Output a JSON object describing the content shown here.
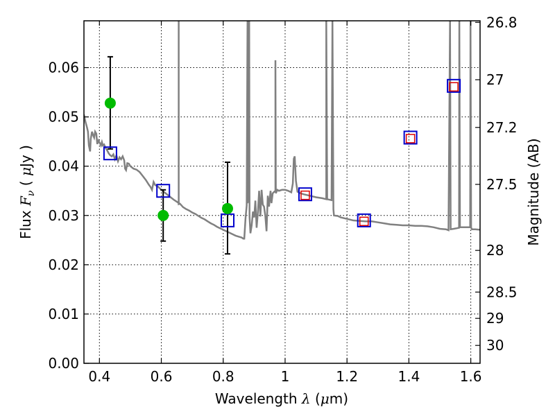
{
  "chart_data": {
    "type": "scatter",
    "xlabel": "Wavelength  λ (μm)",
    "ylabel": "Flux  Fν  ( μJy )",
    "y2label": "Magnitude (AB)",
    "xlim": [
      0.35,
      1.63
    ],
    "ylim": [
      0.0,
      0.0695
    ],
    "grid": true,
    "x_ticks": [
      0.4,
      0.6,
      0.8,
      1.0,
      1.2,
      1.4,
      1.6
    ],
    "x_tick_labels": [
      "0.4",
      "0.6",
      "0.8",
      "1",
      "1.2",
      "1.4",
      "1.6"
    ],
    "y_ticks": [
      0.0,
      0.01,
      0.02,
      0.03,
      0.04,
      0.05,
      0.06
    ],
    "y_tick_labels": [
      "0.00",
      "0.01",
      "0.02",
      "0.03",
      "0.04",
      "0.05",
      "0.06"
    ],
    "y2_ticks": [
      26.8,
      27.0,
      27.2,
      27.5,
      28.0,
      28.5,
      29.0,
      30.0
    ],
    "y2_tick_labels": [
      "26.8",
      "27",
      "27.2",
      "27.5",
      "28",
      "28.5",
      "29",
      "30"
    ],
    "series": [
      {
        "kind": "observed",
        "color": "#00bb00",
        "points": [
          {
            "x": 0.435,
            "y": 0.0528,
            "err_low": 0.0435,
            "err_high": 0.0622
          },
          {
            "x": 0.606,
            "y": 0.03,
            "err_low": 0.0248,
            "err_high": 0.0352
          },
          {
            "x": 0.814,
            "y": 0.0314,
            "err_low": 0.0222,
            "err_high": 0.0408
          }
        ]
      },
      {
        "kind": "model-broadband-blue",
        "color": "#0000cc",
        "points": [
          {
            "x": 0.435,
            "y": 0.0426
          },
          {
            "x": 0.606,
            "y": 0.035
          },
          {
            "x": 0.814,
            "y": 0.029
          },
          {
            "x": 1.065,
            "y": 0.0343
          },
          {
            "x": 1.255,
            "y": 0.029
          },
          {
            "x": 1.405,
            "y": 0.0458
          },
          {
            "x": 1.545,
            "y": 0.0563
          }
        ]
      },
      {
        "kind": "model-broadband-red",
        "color": "#dd0000",
        "points": [
          {
            "x": 1.065,
            "y": 0.0341
          },
          {
            "x": 1.255,
            "y": 0.0288
          },
          {
            "x": 1.405,
            "y": 0.0456
          },
          {
            "x": 1.545,
            "y": 0.0561
          }
        ]
      },
      {
        "kind": "model-spectrum",
        "color": "#808080",
        "points": [
          [
            0.35,
            0.0505
          ],
          [
            0.355,
            0.049
          ],
          [
            0.36,
            0.0478
          ],
          [
            0.363,
            0.047
          ],
          [
            0.366,
            0.0442
          ],
          [
            0.37,
            0.043
          ],
          [
            0.372,
            0.0455
          ],
          [
            0.376,
            0.047
          ],
          [
            0.38,
            0.0462
          ],
          [
            0.383,
            0.0458
          ],
          [
            0.386,
            0.047
          ],
          [
            0.39,
            0.0466
          ],
          [
            0.393,
            0.0445
          ],
          [
            0.397,
            0.0452
          ],
          [
            0.401,
            0.0447
          ],
          [
            0.405,
            0.0442
          ],
          [
            0.408,
            0.0449
          ],
          [
            0.411,
            0.0442
          ],
          [
            0.415,
            0.0444
          ],
          [
            0.42,
            0.0437
          ],
          [
            0.425,
            0.0432
          ],
          [
            0.43,
            0.0426
          ],
          [
            0.435,
            0.0422
          ],
          [
            0.44,
            0.042
          ],
          [
            0.445,
            0.0424
          ],
          [
            0.45,
            0.0414
          ],
          [
            0.455,
            0.0422
          ],
          [
            0.46,
            0.041
          ],
          [
            0.465,
            0.0418
          ],
          [
            0.47,
            0.0414
          ],
          [
            0.475,
            0.042
          ],
          [
            0.48,
            0.0412
          ],
          [
            0.483,
            0.0395
          ],
          [
            0.486,
            0.0392
          ],
          [
            0.49,
            0.0406
          ],
          [
            0.495,
            0.0405
          ],
          [
            0.5,
            0.04
          ],
          [
            0.51,
            0.0395
          ],
          [
            0.52,
            0.0393
          ],
          [
            0.53,
            0.0388
          ],
          [
            0.54,
            0.038
          ],
          [
            0.55,
            0.0372
          ],
          [
            0.56,
            0.0362
          ],
          [
            0.565,
            0.0358
          ],
          [
            0.57,
            0.0352
          ],
          [
            0.575,
            0.0368
          ],
          [
            0.58,
            0.0362
          ],
          [
            0.59,
            0.0358
          ],
          [
            0.6,
            0.0352
          ],
          [
            0.61,
            0.0347
          ],
          [
            0.62,
            0.0342
          ],
          [
            0.63,
            0.0337
          ],
          [
            0.64,
            0.0332
          ],
          [
            0.65,
            0.0328
          ],
          [
            0.6563,
            0.0325
          ],
          [
            0.6563,
            0.0697
          ],
          [
            0.6563,
            0.0323
          ],
          [
            0.66,
            0.0324
          ],
          [
            0.67,
            0.0317
          ],
          [
            0.68,
            0.0313
          ],
          [
            0.69,
            0.031
          ],
          [
            0.7,
            0.0306
          ],
          [
            0.71,
            0.0303
          ],
          [
            0.72,
            0.0299
          ],
          [
            0.73,
            0.0295
          ],
          [
            0.74,
            0.0292
          ],
          [
            0.75,
            0.0288
          ],
          [
            0.76,
            0.0284
          ],
          [
            0.77,
            0.0281
          ],
          [
            0.78,
            0.0277
          ],
          [
            0.79,
            0.0274
          ],
          [
            0.8,
            0.0271
          ],
          [
            0.81,
            0.0268
          ],
          [
            0.82,
            0.0265
          ],
          [
            0.83,
            0.0262
          ],
          [
            0.84,
            0.0259
          ],
          [
            0.85,
            0.0257
          ],
          [
            0.86,
            0.0255
          ],
          [
            0.865,
            0.0253
          ],
          [
            0.868,
            0.0253
          ],
          [
            0.872,
            0.0294
          ],
          [
            0.876,
            0.032
          ],
          [
            0.8786,
            0.0697
          ],
          [
            0.8786,
            0.0325
          ],
          [
            0.882,
            0.0335
          ],
          [
            0.884,
            0.0697
          ],
          [
            0.885,
            0.0298
          ],
          [
            0.888,
            0.0264
          ],
          [
            0.892,
            0.028
          ],
          [
            0.896,
            0.0308
          ],
          [
            0.9,
            0.0296
          ],
          [
            0.904,
            0.033
          ],
          [
            0.908,
            0.0275
          ],
          [
            0.912,
            0.0305
          ],
          [
            0.916,
            0.035
          ],
          [
            0.92,
            0.0298
          ],
          [
            0.924,
            0.0352
          ],
          [
            0.928,
            0.0322
          ],
          [
            0.932,
            0.0318
          ],
          [
            0.936,
            0.03
          ],
          [
            0.94,
            0.0268
          ],
          [
            0.944,
            0.034
          ],
          [
            0.948,
            0.0318
          ],
          [
            0.953,
            0.035
          ],
          [
            0.956,
            0.0325
          ],
          [
            0.96,
            0.0345
          ],
          [
            0.965,
            0.0348
          ],
          [
            0.9688,
            0.035
          ],
          [
            0.9688,
            0.0615
          ],
          [
            0.97,
            0.0345
          ],
          [
            0.975,
            0.0352
          ],
          [
            0.98,
            0.035
          ],
          [
            0.99,
            0.0352
          ],
          [
            1.0,
            0.0352
          ],
          [
            1.01,
            0.035
          ],
          [
            1.02,
            0.0347
          ],
          [
            1.025,
            0.0365
          ],
          [
            1.028,
            0.0415
          ],
          [
            1.031,
            0.042
          ],
          [
            1.035,
            0.037
          ],
          [
            1.04,
            0.0348
          ],
          [
            1.05,
            0.0345
          ],
          [
            1.06,
            0.0343
          ],
          [
            1.08,
            0.034
          ],
          [
            1.1,
            0.0337
          ],
          [
            1.12,
            0.0335
          ],
          [
            1.133,
            0.0333
          ],
          [
            1.133,
            0.0697
          ],
          [
            1.136,
            0.0333
          ],
          [
            1.15,
            0.0331
          ],
          [
            1.153,
            0.0697
          ],
          [
            1.156,
            0.0312
          ],
          [
            1.158,
            0.03
          ],
          [
            1.17,
            0.0299
          ],
          [
            1.18,
            0.0296
          ],
          [
            1.2,
            0.0293
          ],
          [
            1.22,
            0.029
          ],
          [
            1.24,
            0.0289
          ],
          [
            1.26,
            0.0288
          ],
          [
            1.28,
            0.0288
          ],
          [
            1.3,
            0.0286
          ],
          [
            1.32,
            0.0284
          ],
          [
            1.34,
            0.0282
          ],
          [
            1.36,
            0.0281
          ],
          [
            1.38,
            0.028
          ],
          [
            1.4,
            0.028
          ],
          [
            1.42,
            0.0279
          ],
          [
            1.44,
            0.0279
          ],
          [
            1.46,
            0.0278
          ],
          [
            1.48,
            0.0276
          ],
          [
            1.5,
            0.0273
          ],
          [
            1.52,
            0.0272
          ],
          [
            1.528,
            0.027
          ],
          [
            1.533,
            0.0697
          ],
          [
            1.535,
            0.0272
          ],
          [
            1.545,
            0.0273
          ],
          [
            1.555,
            0.0274
          ],
          [
            1.562,
            0.0275
          ],
          [
            1.563,
            0.0697
          ],
          [
            1.565,
            0.0276
          ],
          [
            1.58,
            0.0276
          ],
          [
            1.59,
            0.0276
          ],
          [
            1.598,
            0.0276
          ],
          [
            1.599,
            0.0697
          ],
          [
            1.601,
            0.0275
          ],
          [
            1.604,
            0.0272
          ],
          [
            1.615,
            0.0272
          ],
          [
            1.63,
            0.0271
          ]
        ]
      }
    ]
  }
}
